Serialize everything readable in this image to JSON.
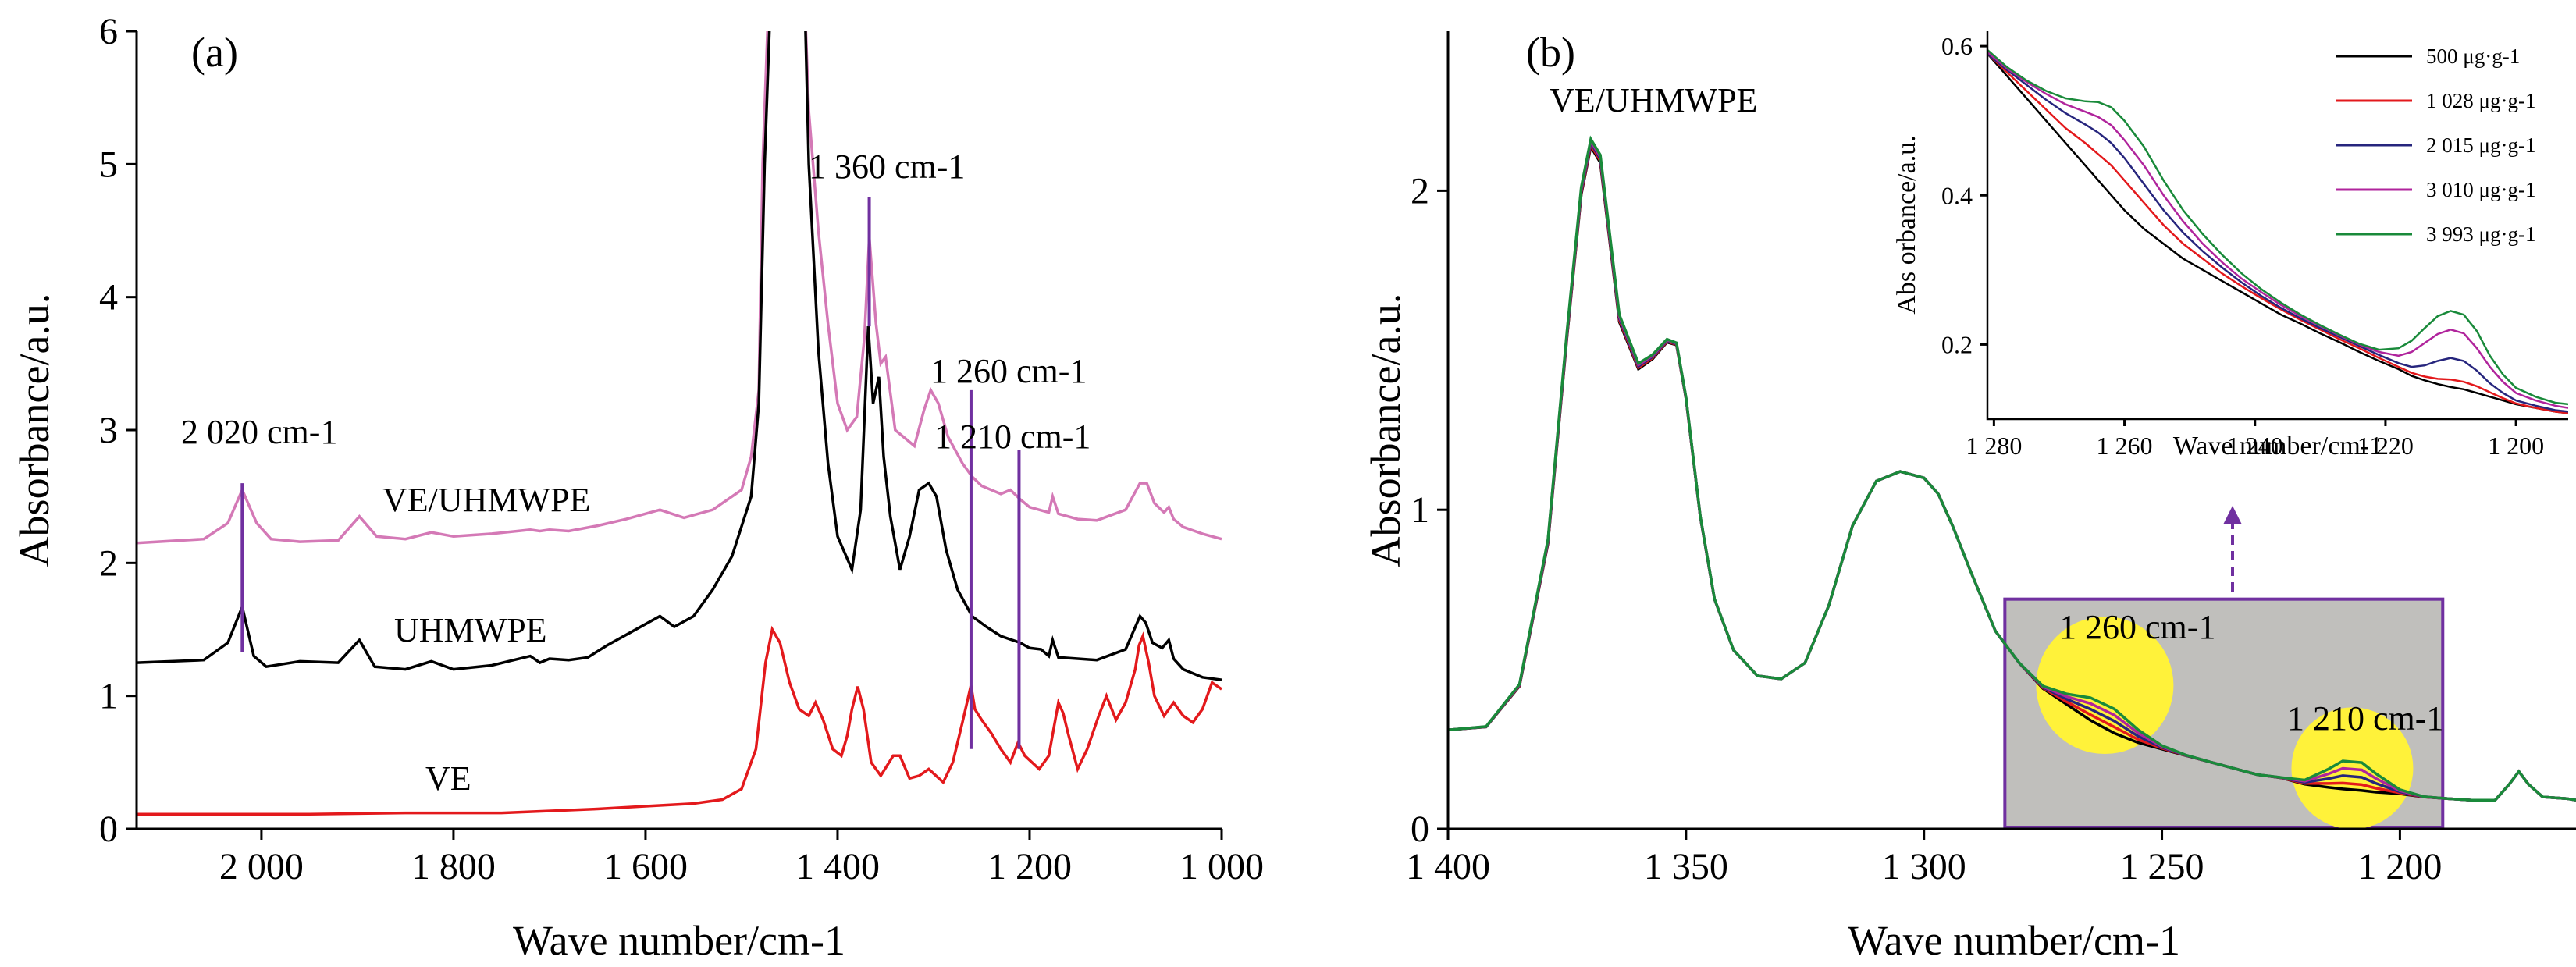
{
  "colors": {
    "VE": "#e3191c",
    "UHMWPE": "#000000",
    "VE/UHMWPE": "#d479b6",
    "marker": "#7030a0",
    "s500": "#000000",
    "s1028": "#e3191c",
    "s2015": "#26257d",
    "s3010": "#b0249c",
    "s3993": "#198a3a",
    "highlight": "#fff23a",
    "box_fill": "#c0bfbc",
    "box_edge": "#7030a0"
  },
  "chart_data": [
    {
      "panel": "(a)",
      "type": "line",
      "xlabel": "Wave number/cm-1",
      "ylabel": "Absorbance/a.u.",
      "xlim": [
        2130,
        1000
      ],
      "ylim": [
        0,
        6
      ],
      "x_ticks": [
        "2 000",
        "1 800",
        "1 600",
        "1 400",
        "1 200",
        "1 000"
      ],
      "x_tick_values": [
        2000,
        1800,
        1600,
        1400,
        1200,
        1000
      ],
      "y_ticks": [
        "0",
        "1",
        "2",
        "3",
        "4",
        "5",
        "6"
      ],
      "y_tick_values": [
        0,
        1,
        2,
        3,
        4,
        5,
        6
      ],
      "series": [
        {
          "name": "VE/UHMWPE",
          "color_key": "VE/UHMWPE",
          "x": [
            2130,
            2060,
            2035,
            2020,
            2005,
            1990,
            1960,
            1920,
            1898,
            1880,
            1850,
            1823,
            1800,
            1760,
            1720,
            1710,
            1700,
            1680,
            1650,
            1620,
            1585,
            1560,
            1530,
            1500,
            1490,
            1482,
            1478,
            1472,
            1465,
            1460,
            1440,
            1434,
            1430,
            1420,
            1410,
            1400,
            1390,
            1380,
            1372,
            1367,
            1360,
            1355,
            1350,
            1340,
            1320,
            1310,
            1303,
            1295,
            1285,
            1270,
            1260,
            1250,
            1240,
            1230,
            1220,
            1210,
            1200,
            1180,
            1176,
            1170,
            1150,
            1130,
            1100,
            1085,
            1078,
            1070,
            1060,
            1055,
            1050,
            1040,
            1020,
            1000
          ],
          "y": [
            2.15,
            2.18,
            2.3,
            2.55,
            2.3,
            2.18,
            2.16,
            2.17,
            2.35,
            2.2,
            2.18,
            2.23,
            2.2,
            2.22,
            2.25,
            2.24,
            2.25,
            2.24,
            2.28,
            2.33,
            2.4,
            2.34,
            2.4,
            2.55,
            2.8,
            3.3,
            5.0,
            6.2,
            6.2,
            6.2,
            6.2,
            6.2,
            5.4,
            4.5,
            3.8,
            3.2,
            3.0,
            3.1,
            3.7,
            4.45,
            3.8,
            3.5,
            3.55,
            3.0,
            2.88,
            3.15,
            3.3,
            3.2,
            2.95,
            2.75,
            2.65,
            2.58,
            2.55,
            2.52,
            2.55,
            2.48,
            2.42,
            2.38,
            2.5,
            2.37,
            2.33,
            2.32,
            2.4,
            2.6,
            2.6,
            2.45,
            2.38,
            2.42,
            2.33,
            2.27,
            2.22,
            2.18
          ]
        },
        {
          "name": "UHMWPE",
          "color_key": "UHMWPE",
          "x": [
            2130,
            2060,
            2035,
            2020,
            2008,
            1995,
            1960,
            1920,
            1898,
            1882,
            1850,
            1823,
            1800,
            1760,
            1720,
            1710,
            1700,
            1680,
            1660,
            1640,
            1620,
            1585,
            1570,
            1550,
            1530,
            1510,
            1490,
            1482,
            1476,
            1470,
            1460,
            1440,
            1434,
            1430,
            1420,
            1410,
            1400,
            1385,
            1376,
            1368,
            1363,
            1357,
            1352,
            1345,
            1335,
            1325,
            1315,
            1305,
            1297,
            1287,
            1275,
            1260,
            1245,
            1230,
            1210,
            1200,
            1188,
            1180,
            1176,
            1170,
            1150,
            1130,
            1100,
            1085,
            1079,
            1072,
            1062,
            1055,
            1050,
            1040,
            1020,
            1000
          ],
          "y": [
            1.25,
            1.27,
            1.4,
            1.67,
            1.3,
            1.22,
            1.26,
            1.25,
            1.42,
            1.22,
            1.2,
            1.26,
            1.2,
            1.23,
            1.3,
            1.25,
            1.28,
            1.27,
            1.29,
            1.38,
            1.46,
            1.6,
            1.52,
            1.6,
            1.8,
            2.05,
            2.5,
            3.2,
            5.0,
            6.2,
            6.2,
            6.2,
            6.2,
            5.0,
            3.6,
            2.75,
            2.2,
            1.95,
            2.4,
            3.78,
            3.2,
            3.4,
            2.8,
            2.35,
            1.95,
            2.2,
            2.55,
            2.6,
            2.5,
            2.1,
            1.8,
            1.6,
            1.52,
            1.45,
            1.4,
            1.36,
            1.35,
            1.3,
            1.42,
            1.29,
            1.28,
            1.27,
            1.35,
            1.6,
            1.55,
            1.4,
            1.36,
            1.42,
            1.28,
            1.2,
            1.14,
            1.12
          ]
        },
        {
          "name": "VE",
          "color_key": "VE",
          "x": [
            2130,
            2050,
            1950,
            1850,
            1750,
            1650,
            1600,
            1550,
            1520,
            1500,
            1485,
            1475,
            1468,
            1460,
            1450,
            1440,
            1430,
            1423,
            1415,
            1405,
            1396,
            1390,
            1385,
            1379,
            1373,
            1365,
            1355,
            1342,
            1335,
            1325,
            1315,
            1305,
            1290,
            1280,
            1270,
            1261,
            1257,
            1250,
            1240,
            1230,
            1220,
            1212,
            1205,
            1190,
            1180,
            1175,
            1170,
            1165,
            1160,
            1150,
            1140,
            1128,
            1120,
            1110,
            1100,
            1090,
            1086,
            1082,
            1076,
            1070,
            1060,
            1050,
            1040,
            1030,
            1020,
            1010,
            1000
          ],
          "y": [
            0.11,
            0.11,
            0.11,
            0.12,
            0.12,
            0.15,
            0.17,
            0.19,
            0.22,
            0.3,
            0.6,
            1.25,
            1.5,
            1.4,
            1.1,
            0.9,
            0.85,
            0.95,
            0.82,
            0.6,
            0.55,
            0.7,
            0.9,
            1.07,
            0.9,
            0.5,
            0.4,
            0.55,
            0.55,
            0.38,
            0.4,
            0.45,
            0.35,
            0.5,
            0.8,
            1.08,
            0.9,
            0.82,
            0.72,
            0.6,
            0.5,
            0.65,
            0.55,
            0.45,
            0.55,
            0.75,
            0.95,
            0.87,
            0.72,
            0.45,
            0.6,
            0.85,
            1.0,
            0.82,
            0.95,
            1.2,
            1.38,
            1.45,
            1.25,
            1.0,
            0.85,
            0.95,
            0.85,
            0.8,
            0.9,
            1.1,
            1.05
          ]
        }
      ],
      "annotations": {
        "series_labels": [
          "VE/UHMWPE",
          "UHMWPE",
          "VE"
        ],
        "peak_2020": "2 020 cm-1",
        "peak_1360": "1 360 cm-1",
        "peak_1260": "1 260 cm-1",
        "peak_1210": "1 210 cm-1"
      },
      "marker_lines": [
        {
          "x": 2020,
          "y_from": 1.33,
          "y_to": 2.6
        },
        {
          "x": 1367,
          "y_from": 3.78,
          "y_to": 4.75
        },
        {
          "x": 1261,
          "y_from": 0.6,
          "y_to": 3.3
        },
        {
          "x": 1211,
          "y_from": 0.6,
          "y_to": 2.85
        }
      ]
    },
    {
      "panel": "(b)",
      "type": "line",
      "title_text": "VE/UHMWPE",
      "xlabel": "Wave number/cm-1",
      "ylabel": "Absorbance/a.u.",
      "xlim": [
        1400,
        1163
      ],
      "ylim": [
        0,
        2.5
      ],
      "x_ticks": [
        "1 400",
        "1 350",
        "1 300",
        "1 250",
        "1 200"
      ],
      "x_tick_values": [
        1400,
        1350,
        1300,
        1250,
        1200
      ],
      "y_ticks": [
        "0",
        "1",
        "2"
      ],
      "y_tick_values": [
        0,
        1,
        2
      ],
      "x": [
        1400,
        1392,
        1385,
        1379,
        1375,
        1372,
        1370,
        1368,
        1366,
        1364,
        1360,
        1357,
        1354,
        1352,
        1350,
        1347,
        1344,
        1340,
        1335,
        1330,
        1325,
        1320,
        1315,
        1310,
        1305,
        1300,
        1297,
        1294,
        1290,
        1285,
        1280,
        1275,
        1270,
        1265,
        1260,
        1255,
        1250,
        1245,
        1240,
        1235,
        1230,
        1225,
        1220,
        1215,
        1212,
        1208,
        1205,
        1200,
        1195,
        1190,
        1185,
        1180,
        1177,
        1175,
        1173,
        1170,
        1165,
        1163
      ],
      "base": [
        0.31,
        0.32,
        0.45,
        0.9,
        1.55,
        2.0,
        2.15,
        2.1,
        1.85,
        1.6,
        1.45,
        1.48,
        1.53,
        1.52,
        1.35,
        0.98,
        0.72,
        0.56,
        0.48,
        0.47,
        0.52,
        0.7,
        0.95,
        1.09,
        1.12,
        1.1,
        1.05,
        0.95,
        0.8,
        0.62,
        0.52,
        0.44,
        0.39,
        0.34,
        0.3,
        0.27,
        0.25,
        0.23,
        0.21,
        0.19,
        0.17,
        0.16,
        0.14,
        0.13,
        0.125,
        0.12,
        0.115,
        0.11,
        0.1,
        0.095,
        0.09,
        0.09,
        0.14,
        0.18,
        0.14,
        0.1,
        0.095,
        0.09
      ],
      "series": [
        {
          "name": "500 μg·g-1",
          "color_key": "s500",
          "bump1260": 0.0,
          "bump1210": 0.0
        },
        {
          "name": "1 028 μg·g-1",
          "color_key": "s1028",
          "bump1260": 0.02,
          "bump1210": 0.02
        },
        {
          "name": "2 015 μg·g-1",
          "color_key": "s2015",
          "bump1260": 0.04,
          "bump1210": 0.045
        },
        {
          "name": "3 010 μg·g-1",
          "color_key": "s3010",
          "bump1260": 0.06,
          "bump1210": 0.07
        },
        {
          "name": "3 993 μg·g-1",
          "color_key": "s3993",
          "bump1260": 0.08,
          "bump1210": 0.095
        }
      ],
      "highlight_box": {
        "x_from": 1283,
        "x_to": 1191,
        "y_from": 0.0,
        "y_to": 0.72
      },
      "highlight_circles": [
        {
          "x": 1262,
          "y": 0.45
        },
        {
          "x": 1210,
          "y": 0.19
        }
      ],
      "annotations": {
        "peak_1260": "1 260 cm-1",
        "peak_1210": "1 210 cm-1"
      }
    },
    {
      "panel": "(b) inset",
      "type": "line",
      "xlabel": "Wave number/cm-1",
      "ylabel": "Abs orbance/a.u.",
      "xlim": [
        1281,
        1192
      ],
      "ylim": [
        0.1,
        0.62
      ],
      "x_ticks": [
        "1 280",
        "1 260",
        "1 240",
        "1 220",
        "1 200"
      ],
      "x_tick_values": [
        1280,
        1260,
        1240,
        1220,
        1200
      ],
      "y_ticks": [
        "0.2",
        "0.4",
        "0.6"
      ],
      "y_tick_values": [
        0.2,
        0.4,
        0.6
      ],
      "x": [
        1281,
        1278,
        1275,
        1272,
        1269,
        1266,
        1264,
        1262,
        1260,
        1257,
        1254,
        1251,
        1248,
        1245,
        1242,
        1239,
        1236,
        1233,
        1230,
        1227,
        1224,
        1221,
        1218,
        1216,
        1214,
        1212,
        1210,
        1208,
        1206,
        1204,
        1202,
        1200,
        1197,
        1194,
        1192
      ],
      "series": [
        {
          "name": "500 μg·g-1",
          "color_key": "s500",
          "y": [
            0.59,
            0.56,
            0.53,
            0.5,
            0.47,
            0.44,
            0.42,
            0.4,
            0.38,
            0.355,
            0.335,
            0.315,
            0.3,
            0.285,
            0.27,
            0.255,
            0.24,
            0.228,
            0.215,
            0.203,
            0.19,
            0.178,
            0.167,
            0.158,
            0.152,
            0.147,
            0.143,
            0.14,
            0.135,
            0.13,
            0.125,
            0.12,
            0.115,
            0.11,
            0.108
          ]
        },
        {
          "name": "1 028 μg·g-1",
          "color_key": "s1028",
          "y": [
            0.59,
            0.565,
            0.54,
            0.515,
            0.49,
            0.47,
            0.455,
            0.44,
            0.42,
            0.39,
            0.36,
            0.335,
            0.315,
            0.295,
            0.278,
            0.262,
            0.247,
            0.233,
            0.22,
            0.207,
            0.195,
            0.182,
            0.17,
            0.162,
            0.157,
            0.154,
            0.153,
            0.15,
            0.144,
            0.136,
            0.128,
            0.121,
            0.115,
            0.11,
            0.108
          ]
        },
        {
          "name": "2 015 μg·g-1",
          "color_key": "s2015",
          "y": [
            0.59,
            0.568,
            0.548,
            0.528,
            0.51,
            0.495,
            0.484,
            0.47,
            0.45,
            0.415,
            0.38,
            0.35,
            0.325,
            0.303,
            0.283,
            0.265,
            0.249,
            0.235,
            0.222,
            0.21,
            0.198,
            0.186,
            0.175,
            0.17,
            0.172,
            0.178,
            0.182,
            0.178,
            0.165,
            0.148,
            0.135,
            0.125,
            0.118,
            0.112,
            0.11
          ]
        },
        {
          "name": "3 010 μg·g-1",
          "color_key": "s3010",
          "y": [
            0.592,
            0.57,
            0.552,
            0.536,
            0.522,
            0.512,
            0.505,
            0.494,
            0.474,
            0.44,
            0.4,
            0.365,
            0.335,
            0.31,
            0.288,
            0.27,
            0.253,
            0.238,
            0.225,
            0.212,
            0.2,
            0.19,
            0.185,
            0.19,
            0.202,
            0.214,
            0.22,
            0.215,
            0.195,
            0.17,
            0.15,
            0.135,
            0.125,
            0.118,
            0.115
          ]
        },
        {
          "name": "3 993 μg·g-1",
          "color_key": "s3993",
          "y": [
            0.595,
            0.572,
            0.554,
            0.54,
            0.53,
            0.526,
            0.525,
            0.518,
            0.5,
            0.465,
            0.42,
            0.38,
            0.348,
            0.32,
            0.295,
            0.274,
            0.256,
            0.24,
            0.226,
            0.213,
            0.201,
            0.193,
            0.195,
            0.205,
            0.222,
            0.238,
            0.245,
            0.24,
            0.218,
            0.185,
            0.16,
            0.142,
            0.13,
            0.122,
            0.12
          ]
        }
      ]
    }
  ]
}
